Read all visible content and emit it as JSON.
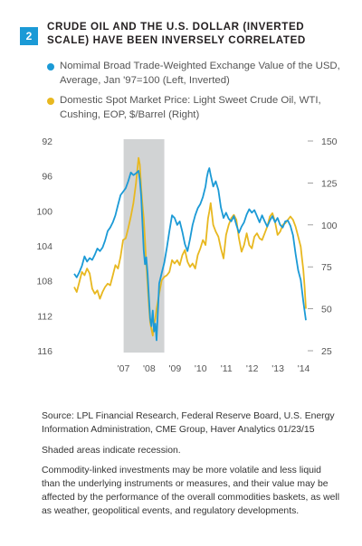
{
  "figure": {
    "number": "2",
    "title": "CRUDE OIL AND THE U.S. DOLLAR (INVERTED SCALE) HAVE BEEN INVERSELY CORRELATED"
  },
  "legend": [
    {
      "label": "Nomimal Broad Trade-Weighted Exchange Value of the USD, Average, Jan '97=100 (Left, Inverted)",
      "color": "#1b9ad6"
    },
    {
      "label": "Domestic Spot Market Price: Light Sweet Crude Oil, WTI, Cushing, EOP, $/Barrel (Right)",
      "color": "#e8b820"
    }
  ],
  "notes": {
    "source": "Source: LPL Financial Research, Federal Reserve Board, U.S. Energy Information Administration, CME Group, Haver Analytics 01/23/15",
    "recession": "Shaded areas indicate recession.",
    "disclaimer": "Commodity-linked investments may be more volatile and less liquid than the underlying instruments or measures, and their value may be affected by the performance of the overall commodities baskets, as well as weather, geopolitical events, and regulatory developments."
  },
  "chart_data": {
    "type": "line",
    "title": "CRUDE OIL AND THE U.S. DOLLAR (INVERTED SCALE) HAVE BEEN INVERSELY CORRELATED",
    "x_tick_labels": [
      "'07",
      "'08",
      "'09",
      "'10",
      "'11",
      "'12",
      "'13",
      "'14"
    ],
    "x_ticks": [
      2007,
      2008,
      2009,
      2010,
      2011,
      2012,
      2013,
      2014
    ],
    "xlim": [
      2006.0,
      2015.0
    ],
    "left_axis": {
      "ticks": [
        92,
        96,
        100,
        104,
        108,
        112,
        116
      ],
      "ylim": [
        92,
        116
      ],
      "inverted": true
    },
    "right_axis": {
      "ticks": [
        150,
        125,
        100,
        75,
        50,
        25
      ],
      "ylim": [
        25,
        150
      ]
    },
    "recession": [
      2007.92,
      2009.5
    ],
    "grid": false,
    "series": [
      {
        "name": "Nomimal Broad Trade-Weighted Exchange Value of the USD, Average, Jan '97=100 (Left, Inverted)",
        "axis": "left",
        "color": "#1b9ad6",
        "points": [
          [
            2006.0,
            107.2
          ],
          [
            2006.1,
            107.6
          ],
          [
            2006.2,
            107.0
          ],
          [
            2006.3,
            106.3
          ],
          [
            2006.4,
            105.2
          ],
          [
            2006.5,
            105.8
          ],
          [
            2006.6,
            105.4
          ],
          [
            2006.7,
            105.6
          ],
          [
            2006.8,
            105.0
          ],
          [
            2006.9,
            104.3
          ],
          [
            2007.0,
            104.6
          ],
          [
            2007.1,
            104.2
          ],
          [
            2007.2,
            103.4
          ],
          [
            2007.3,
            102.3
          ],
          [
            2007.4,
            101.9
          ],
          [
            2007.5,
            101.3
          ],
          [
            2007.6,
            100.5
          ],
          [
            2007.7,
            99.3
          ],
          [
            2007.8,
            98.2
          ],
          [
            2007.9,
            97.8
          ],
          [
            2008.0,
            97.4
          ],
          [
            2008.1,
            96.6
          ],
          [
            2008.2,
            95.6
          ],
          [
            2008.3,
            95.9
          ],
          [
            2008.4,
            95.7
          ],
          [
            2008.5,
            95.4
          ],
          [
            2008.55,
            96.4
          ],
          [
            2008.6,
            98.3
          ],
          [
            2008.65,
            101.4
          ],
          [
            2008.7,
            104.5
          ],
          [
            2008.75,
            106.1
          ],
          [
            2008.8,
            105.3
          ],
          [
            2008.85,
            107.2
          ],
          [
            2008.9,
            109.8
          ],
          [
            2008.95,
            112.3
          ],
          [
            2009.0,
            113.2
          ],
          [
            2009.05,
            111.4
          ],
          [
            2009.1,
            113.8
          ],
          [
            2009.15,
            112.9
          ],
          [
            2009.2,
            114.8
          ],
          [
            2009.25,
            111.6
          ],
          [
            2009.3,
            108.3
          ],
          [
            2009.4,
            107.1
          ],
          [
            2009.5,
            105.9
          ],
          [
            2009.6,
            104.2
          ],
          [
            2009.7,
            102.3
          ],
          [
            2009.8,
            100.5
          ],
          [
            2009.9,
            100.8
          ],
          [
            2010.0,
            101.6
          ],
          [
            2010.1,
            101.2
          ],
          [
            2010.2,
            102.4
          ],
          [
            2010.3,
            103.8
          ],
          [
            2010.4,
            104.6
          ],
          [
            2010.5,
            103.2
          ],
          [
            2010.6,
            101.6
          ],
          [
            2010.7,
            100.5
          ],
          [
            2010.8,
            99.7
          ],
          [
            2010.9,
            99.2
          ],
          [
            2011.0,
            98.4
          ],
          [
            2011.1,
            97.2
          ],
          [
            2011.15,
            96.2
          ],
          [
            2011.2,
            95.5
          ],
          [
            2011.25,
            95.1
          ],
          [
            2011.3,
            95.9
          ],
          [
            2011.4,
            97.2
          ],
          [
            2011.5,
            96.6
          ],
          [
            2011.6,
            97.6
          ],
          [
            2011.7,
            99.6
          ],
          [
            2011.8,
            100.8
          ],
          [
            2011.9,
            100.2
          ],
          [
            2012.0,
            100.9
          ],
          [
            2012.1,
            101.2
          ],
          [
            2012.2,
            100.6
          ],
          [
            2012.3,
            101.6
          ],
          [
            2012.4,
            102.5
          ],
          [
            2012.5,
            101.8
          ],
          [
            2012.6,
            101.3
          ],
          [
            2012.7,
            100.4
          ],
          [
            2012.8,
            99.8
          ],
          [
            2012.9,
            100.2
          ],
          [
            2013.0,
            99.9
          ],
          [
            2013.1,
            100.6
          ],
          [
            2013.2,
            101.3
          ],
          [
            2013.3,
            100.5
          ],
          [
            2013.4,
            101.2
          ],
          [
            2013.5,
            101.8
          ],
          [
            2013.6,
            101.1
          ],
          [
            2013.7,
            100.6
          ],
          [
            2013.8,
            101.3
          ],
          [
            2013.9,
            100.8
          ],
          [
            2014.0,
            101.6
          ],
          [
            2014.1,
            101.9
          ],
          [
            2014.2,
            101.2
          ],
          [
            2014.3,
            101.1
          ],
          [
            2014.4,
            101.7
          ],
          [
            2014.5,
            102.8
          ],
          [
            2014.6,
            104.9
          ],
          [
            2014.7,
            106.8
          ],
          [
            2014.8,
            107.9
          ],
          [
            2014.9,
            110.4
          ],
          [
            2015.0,
            112.5
          ]
        ]
      },
      {
        "name": "Domestic Spot Market Price: Light Sweet Crude Oil, WTI, Cushing, EOP, $/Barrel (Right)",
        "axis": "right",
        "color": "#e8b820",
        "points": [
          [
            2006.0,
            63
          ],
          [
            2006.1,
            60
          ],
          [
            2006.2,
            66
          ],
          [
            2006.3,
            72
          ],
          [
            2006.4,
            70
          ],
          [
            2006.5,
            74
          ],
          [
            2006.6,
            71
          ],
          [
            2006.7,
            62
          ],
          [
            2006.8,
            59
          ],
          [
            2006.9,
            61
          ],
          [
            2007.0,
            56
          ],
          [
            2007.1,
            60
          ],
          [
            2007.2,
            63
          ],
          [
            2007.3,
            65
          ],
          [
            2007.4,
            64
          ],
          [
            2007.5,
            70
          ],
          [
            2007.6,
            76
          ],
          [
            2007.7,
            74
          ],
          [
            2007.8,
            81
          ],
          [
            2007.9,
            91
          ],
          [
            2008.0,
            92
          ],
          [
            2008.1,
            98
          ],
          [
            2008.2,
            105
          ],
          [
            2008.3,
            113
          ],
          [
            2008.4,
            125
          ],
          [
            2008.5,
            140
          ],
          [
            2008.55,
            136
          ],
          [
            2008.6,
            122
          ],
          [
            2008.65,
            112
          ],
          [
            2008.7,
            104
          ],
          [
            2008.75,
            91
          ],
          [
            2008.8,
            77
          ],
          [
            2008.85,
            64
          ],
          [
            2008.9,
            52
          ],
          [
            2008.95,
            42
          ],
          [
            2009.0,
            38
          ],
          [
            2009.05,
            34
          ],
          [
            2009.1,
            41
          ],
          [
            2009.15,
            44
          ],
          [
            2009.2,
            50
          ],
          [
            2009.3,
            59
          ],
          [
            2009.4,
            67
          ],
          [
            2009.5,
            69
          ],
          [
            2009.6,
            70
          ],
          [
            2009.7,
            72
          ],
          [
            2009.8,
            79
          ],
          [
            2009.9,
            77
          ],
          [
            2010.0,
            79
          ],
          [
            2010.1,
            76
          ],
          [
            2010.2,
            82
          ],
          [
            2010.3,
            85
          ],
          [
            2010.4,
            78
          ],
          [
            2010.5,
            75
          ],
          [
            2010.6,
            77
          ],
          [
            2010.7,
            74
          ],
          [
            2010.8,
            82
          ],
          [
            2010.9,
            86
          ],
          [
            2011.0,
            91
          ],
          [
            2011.1,
            88
          ],
          [
            2011.2,
            104
          ],
          [
            2011.25,
            108
          ],
          [
            2011.3,
            113
          ],
          [
            2011.4,
            100
          ],
          [
            2011.5,
            96
          ],
          [
            2011.6,
            93
          ],
          [
            2011.7,
            86
          ],
          [
            2011.8,
            80
          ],
          [
            2011.9,
            94
          ],
          [
            2012.0,
            100
          ],
          [
            2012.1,
            104
          ],
          [
            2012.2,
            106
          ],
          [
            2012.3,
            103
          ],
          [
            2012.4,
            92
          ],
          [
            2012.5,
            84
          ],
          [
            2012.6,
            88
          ],
          [
            2012.7,
            95
          ],
          [
            2012.8,
            88
          ],
          [
            2012.9,
            86
          ],
          [
            2013.0,
            93
          ],
          [
            2013.1,
            95
          ],
          [
            2013.2,
            92
          ],
          [
            2013.3,
            91
          ],
          [
            2013.4,
            95
          ],
          [
            2013.5,
            99
          ],
          [
            2013.6,
            105
          ],
          [
            2013.7,
            107
          ],
          [
            2013.8,
            102
          ],
          [
            2013.9,
            94
          ],
          [
            2014.0,
            96
          ],
          [
            2014.1,
            100
          ],
          [
            2014.2,
            101
          ],
          [
            2014.3,
            103
          ],
          [
            2014.4,
            105
          ],
          [
            2014.5,
            103
          ],
          [
            2014.6,
            99
          ],
          [
            2014.7,
            93
          ],
          [
            2014.8,
            87
          ],
          [
            2014.85,
            80
          ],
          [
            2014.9,
            73
          ],
          [
            2014.95,
            63
          ],
          [
            2015.0,
            50
          ]
        ]
      }
    ]
  }
}
